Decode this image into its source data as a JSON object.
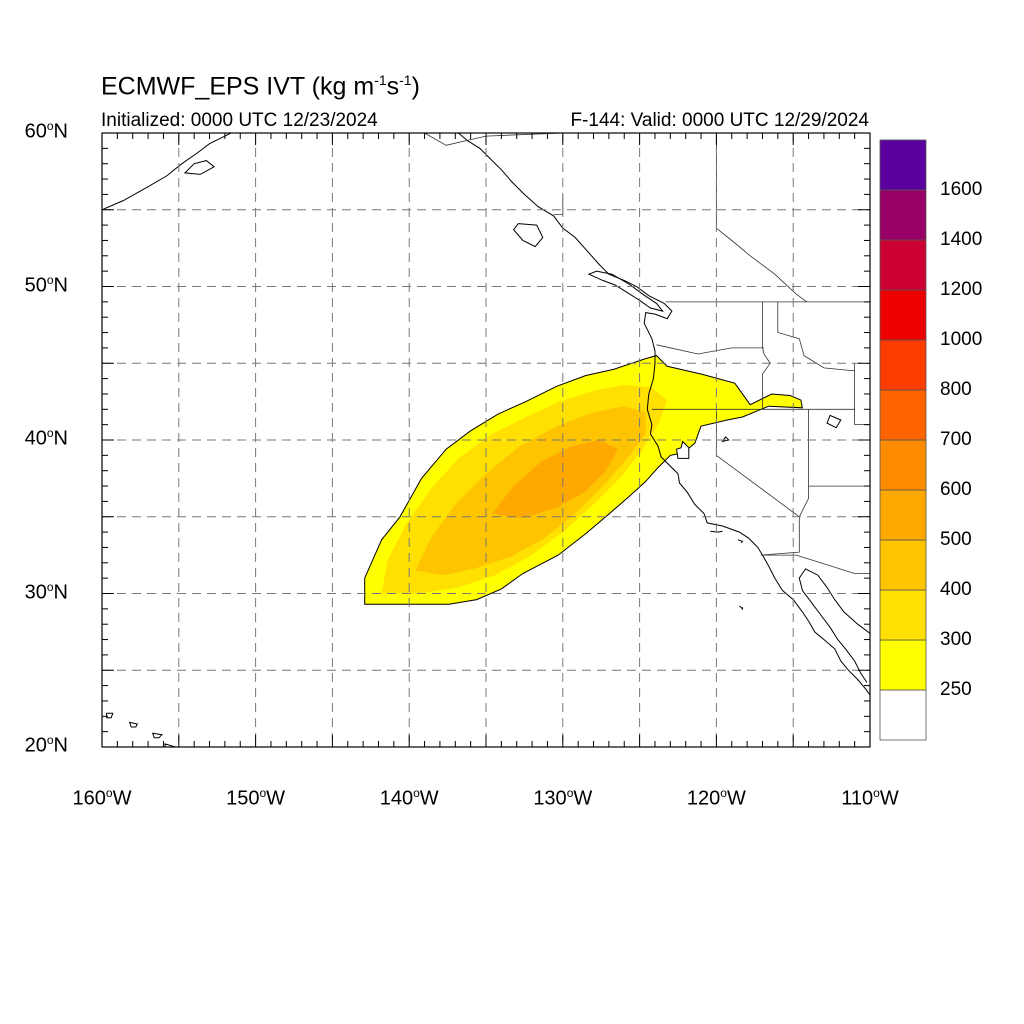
{
  "title": {
    "main": "ECMWF_EPS IVT (kg m",
    "sup1": "-1",
    "mid": "s",
    "sup2": "-1",
    "end": ")"
  },
  "initialized": "Initialized: 0000 UTC 12/23/2024",
  "valid": "F-144: Valid: 0000 UTC 12/29/2024",
  "map": {
    "lon_range": [
      -160,
      -110
    ],
    "lat_range": [
      20,
      60
    ],
    "gridline_style": "dashed",
    "lat_labels": [
      {
        "num": "60",
        "deg": "o",
        "hem": "N",
        "lat": 60
      },
      {
        "num": "50",
        "deg": "o",
        "hem": "N",
        "lat": 50
      },
      {
        "num": "40",
        "deg": "o",
        "hem": "N",
        "lat": 40
      },
      {
        "num": "30",
        "deg": "o",
        "hem": "N",
        "lat": 30
      },
      {
        "num": "20",
        "deg": "o",
        "hem": "N",
        "lat": 20
      }
    ],
    "lon_labels": [
      {
        "num": "160",
        "deg": "o",
        "hem": "W",
        "lon": -160
      },
      {
        "num": "150",
        "deg": "o",
        "hem": "W",
        "lon": -150
      },
      {
        "num": "140",
        "deg": "o",
        "hem": "W",
        "lon": -140
      },
      {
        "num": "130",
        "deg": "o",
        "hem": "W",
        "lon": -130
      },
      {
        "num": "120",
        "deg": "o",
        "hem": "W",
        "lon": -120
      },
      {
        "num": "110",
        "deg": "o",
        "hem": "W",
        "lon": -110
      }
    ]
  },
  "colorbar": {
    "colors": [
      "#ffffff",
      "#ffff00",
      "#ffe000",
      "#ffc400",
      "#ffa800",
      "#ff8c00",
      "#ff6400",
      "#ff3c00",
      "#ee0000",
      "#cc0033",
      "#990066",
      "#5a009c"
    ],
    "labels": [
      "250",
      "300",
      "400",
      "500",
      "600",
      "700",
      "800",
      "1000",
      "1200",
      "1400",
      "1600"
    ]
  },
  "ivt_levels": [
    250,
    300,
    400,
    500
  ],
  "ivt_colors": [
    "#ffff00",
    "#ffe000",
    "#ffc400",
    "#ffa800"
  ]
}
